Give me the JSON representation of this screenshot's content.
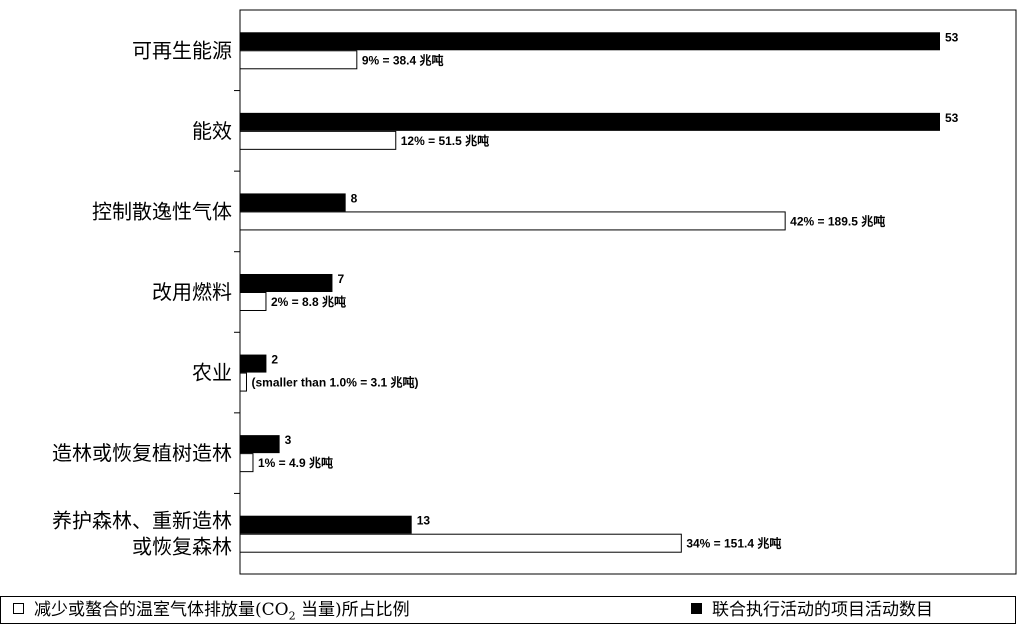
{
  "chart_data": {
    "type": "bar",
    "orientation": "horizontal",
    "categories": [
      [
        "可再生能源"
      ],
      [
        "能效"
      ],
      [
        "控制散逸性气体"
      ],
      [
        "改用燃料"
      ],
      [
        "农业"
      ],
      [
        "造林或恢复植树造林"
      ],
      [
        "养护森林、重新造林",
        "或恢复森林"
      ]
    ],
    "series": [
      {
        "name": "联合执行活动的项目活动数目",
        "color": "#000000",
        "values": [
          53,
          53,
          8,
          7,
          2,
          3,
          13
        ],
        "labels": [
          "53",
          "53",
          "8",
          "7",
          "2",
          "3",
          "13"
        ]
      },
      {
        "name": "减少或螯合的温室气体排放量(CO2当量)所占比例",
        "color": "#ffffff",
        "values": [
          9,
          12,
          42,
          2,
          0.5,
          1,
          34
        ],
        "labels": [
          "9% = 38.4 兆吨",
          "12% = 51.5 兆吨",
          "42% = 189.5 兆吨",
          "2% =  8.8 兆吨",
          "(smaller than 1.0%  = 3.1 兆吨)",
          "1% = 4.9 兆吨",
          "34% = 151.4 兆吨"
        ]
      }
    ],
    "grid": false,
    "legend_placement": "bottom"
  },
  "legend": {
    "open_prefix": "减少或螯合的温室气体排放量(CO",
    "open_sub": "2",
    "open_suffix": " 当量)所占比例",
    "filled_text": "联合执行活动的项目活动数目"
  }
}
